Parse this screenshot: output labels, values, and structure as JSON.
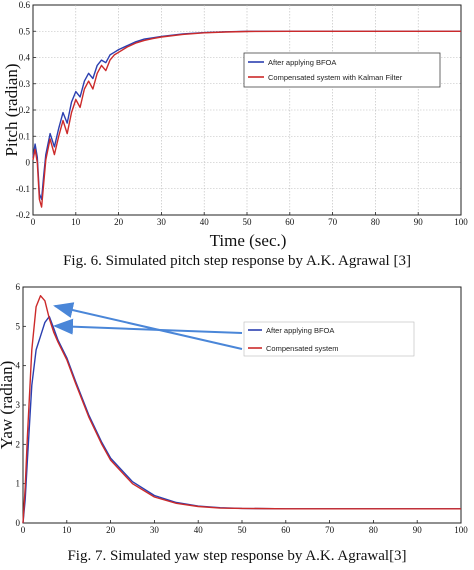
{
  "colors": {
    "series_blue": "#2b3fb0",
    "series_red": "#cc2a2a",
    "arrow": "#4a86d8",
    "grid": "#b8b8b8"
  },
  "captions": {
    "fig6": "Fig. 6. Simulated pitch step response by A.K. Agrawal [3]",
    "fig7": "Fig. 7. Simulated yaw step response by A.K. Agrawal[3]"
  },
  "chart_data": [
    {
      "type": "line",
      "xlabel": "Time (sec.)",
      "ylabel": "Pitch (radian)",
      "xlim": [
        0,
        100
      ],
      "ylim": [
        -0.2,
        0.6
      ],
      "xticks": [
        "0",
        "10",
        "20",
        "30",
        "40",
        "50",
        "60",
        "70",
        "80",
        "90",
        "100"
      ],
      "yticks": [
        "-0.2",
        "-0.1",
        "0",
        "0.1",
        "0.2",
        "0.3",
        "0.4",
        "0.5",
        "0.6"
      ],
      "grid": true,
      "legend_position": "upper-right",
      "series": [
        {
          "name": "After applying BFOA",
          "color": "#2b3fb0",
          "x": [
            0,
            0.5,
            1,
            1.5,
            2,
            2.5,
            3,
            4,
            5,
            6,
            7,
            8,
            9,
            10,
            11,
            12,
            13,
            14,
            15,
            16,
            17,
            18,
            19,
            20,
            22,
            24,
            26,
            28,
            30,
            35,
            40,
            45,
            50,
            60,
            70,
            80,
            90,
            100
          ],
          "y": [
            0.02,
            0.07,
            0.02,
            -0.12,
            -0.14,
            -0.05,
            0.03,
            0.11,
            0.06,
            0.13,
            0.19,
            0.15,
            0.23,
            0.27,
            0.25,
            0.31,
            0.34,
            0.32,
            0.37,
            0.39,
            0.38,
            0.41,
            0.42,
            0.43,
            0.445,
            0.46,
            0.47,
            0.475,
            0.48,
            0.49,
            0.495,
            0.498,
            0.5,
            0.5,
            0.5,
            0.5,
            0.5,
            0.5
          ]
        },
        {
          "name": "Compensated system with Kalman Filter",
          "color": "#cc2a2a",
          "x": [
            0,
            0.5,
            1,
            1.5,
            2,
            2.5,
            3,
            4,
            5,
            6,
            7,
            8,
            9,
            10,
            11,
            12,
            13,
            14,
            15,
            16,
            17,
            18,
            19,
            20,
            22,
            24,
            26,
            28,
            30,
            35,
            40,
            45,
            50,
            60,
            70,
            80,
            90,
            100
          ],
          "y": [
            0.01,
            0.05,
            0.0,
            -0.14,
            -0.17,
            -0.08,
            0.01,
            0.09,
            0.03,
            0.1,
            0.16,
            0.11,
            0.19,
            0.24,
            0.21,
            0.28,
            0.31,
            0.28,
            0.34,
            0.37,
            0.35,
            0.39,
            0.41,
            0.42,
            0.44,
            0.455,
            0.465,
            0.472,
            0.478,
            0.488,
            0.494,
            0.497,
            0.499,
            0.5,
            0.5,
            0.5,
            0.5,
            0.5
          ]
        }
      ]
    },
    {
      "type": "line",
      "xlabel": "",
      "ylabel": "Yaw (radian)",
      "xlim": [
        0,
        100
      ],
      "ylim": [
        0,
        6
      ],
      "xticks": [
        "0",
        "10",
        "20",
        "30",
        "40",
        "50",
        "60",
        "70",
        "80",
        "90",
        "100"
      ],
      "yticks": [
        "0",
        "1",
        "2",
        "3",
        "4",
        "5",
        "6"
      ],
      "grid": false,
      "legend_position": "upper-right",
      "annotations": [
        "arrow to red peak",
        "arrow to blue peak"
      ],
      "series": [
        {
          "name": "After applying BFOA",
          "color": "#2b3fb0",
          "x": [
            0,
            0.5,
            1,
            2,
            3,
            4,
            5,
            6,
            7,
            8,
            10,
            12,
            15,
            18,
            20,
            25,
            30,
            35,
            40,
            45,
            50,
            60,
            70,
            80,
            90,
            100
          ],
          "y": [
            0,
            0.6,
            1.6,
            3.5,
            4.4,
            4.75,
            5.1,
            5.25,
            4.95,
            4.65,
            4.2,
            3.6,
            2.75,
            2.05,
            1.65,
            1.05,
            0.7,
            0.52,
            0.43,
            0.39,
            0.37,
            0.36,
            0.36,
            0.36,
            0.36,
            0.36
          ]
        },
        {
          "name": "Compensated system",
          "color": "#cc2a2a",
          "x": [
            0,
            0.5,
            1,
            2,
            3,
            4,
            5,
            6,
            7,
            8,
            10,
            12,
            15,
            18,
            20,
            25,
            30,
            35,
            40,
            45,
            50,
            60,
            70,
            80,
            90,
            100
          ],
          "y": [
            0,
            0.9,
            2.2,
            4.4,
            5.5,
            5.78,
            5.65,
            5.2,
            4.85,
            4.6,
            4.15,
            3.55,
            2.7,
            2.0,
            1.6,
            1.0,
            0.66,
            0.5,
            0.42,
            0.38,
            0.37,
            0.36,
            0.36,
            0.36,
            0.36,
            0.36
          ]
        }
      ]
    }
  ]
}
